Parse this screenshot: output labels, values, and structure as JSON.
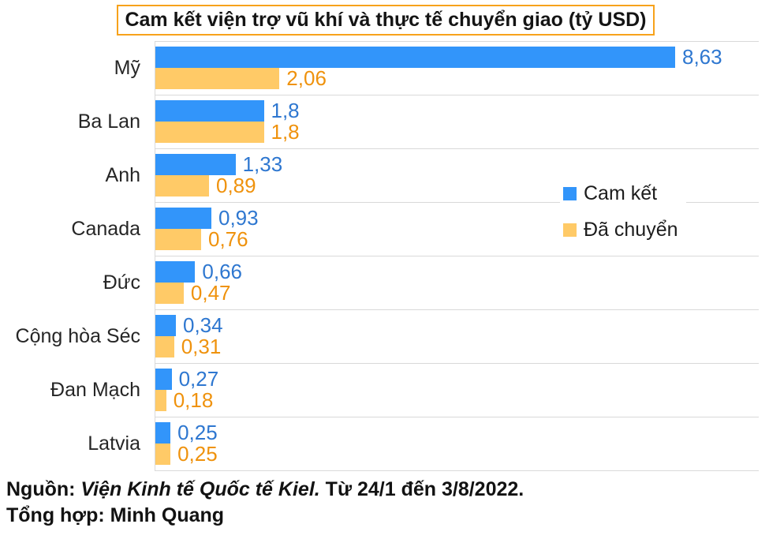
{
  "title": "Cam kết viện trợ vũ khí và thực tế chuyển giao (tỷ USD)",
  "colors": {
    "bar_committed": "#3295FA",
    "bar_delivered": "#FFCA67",
    "label_committed": "#2E77D0",
    "label_delivered": "#EF920D",
    "title_border": "#F7A21B",
    "grid_line": "#D9D9D9",
    "text": "#262626"
  },
  "chart_data": {
    "type": "bar",
    "orientation": "horizontal",
    "title": "Cam kết viện trợ vũ khí và thực tế chuyển giao (tỷ USD)",
    "categories": [
      "Mỹ",
      "Ba Lan",
      "Anh",
      "Canada",
      "Đức",
      "Cộng hòa Séc",
      "Đan Mạch",
      "Latvia"
    ],
    "series": [
      {
        "name": "Cam kết",
        "color": "#3295FA",
        "values": [
          8.63,
          1.8,
          1.33,
          0.93,
          0.66,
          0.34,
          0.27,
          0.25
        ],
        "display_labels": [
          "8,63",
          "1,8",
          "1,33",
          "0,93",
          "0,66",
          "0,34",
          "0,27",
          "0,25"
        ]
      },
      {
        "name": "Đã chuyển",
        "color": "#FFCA67",
        "values": [
          2.06,
          1.8,
          0.89,
          0.76,
          0.47,
          0.31,
          0.18,
          0.25
        ],
        "display_labels": [
          "2,06",
          "1,8",
          "0,89",
          "0,76",
          "0,47",
          "0,31",
          "0,18",
          "0,25"
        ]
      }
    ],
    "xlim": [
      0,
      8.63
    ],
    "value_unit": "tỷ USD",
    "grid": "horizontal-row-separators",
    "legend_position": "right-center",
    "decimal_separator": ","
  },
  "legend": {
    "items": [
      {
        "label": "Cam kết",
        "color": "#3295FA"
      },
      {
        "label": "Đã chuyển",
        "color": "#FFCA67"
      }
    ]
  },
  "footer": {
    "source_label": "Nguồn:",
    "source_name": "Viện Kinh tế Quốc tế Kiel.",
    "source_period": "Từ 24/1 đến 3/8/2022.",
    "compiled_by": "Tổng hợp: Minh Quang"
  }
}
